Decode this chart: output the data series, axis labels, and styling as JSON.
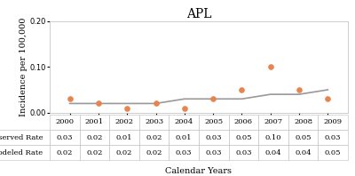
{
  "title": "APL",
  "xlabel": "Calendar Years",
  "ylabel": "Incidence per 100,000",
  "years": [
    2000,
    2001,
    2002,
    2003,
    2004,
    2005,
    2006,
    2007,
    2008,
    2009
  ],
  "observed_rate": [
    0.03,
    0.02,
    0.01,
    0.02,
    0.01,
    0.03,
    0.05,
    0.1,
    0.05,
    0.03
  ],
  "modeled_rate": [
    0.02,
    0.02,
    0.02,
    0.02,
    0.03,
    0.03,
    0.03,
    0.04,
    0.04,
    0.05
  ],
  "ylim": [
    0.0,
    0.2
  ],
  "yticks": [
    0.0,
    0.1,
    0.2
  ],
  "observed_color": "#E8834E",
  "modeled_color": "#999999",
  "background_color": "#ffffff",
  "table_row1_label": "Observed Rate",
  "table_row2_label": "Modeled Rate",
  "title_fontsize": 10,
  "axis_label_fontsize": 7,
  "tick_fontsize": 6,
  "table_fontsize": 6
}
